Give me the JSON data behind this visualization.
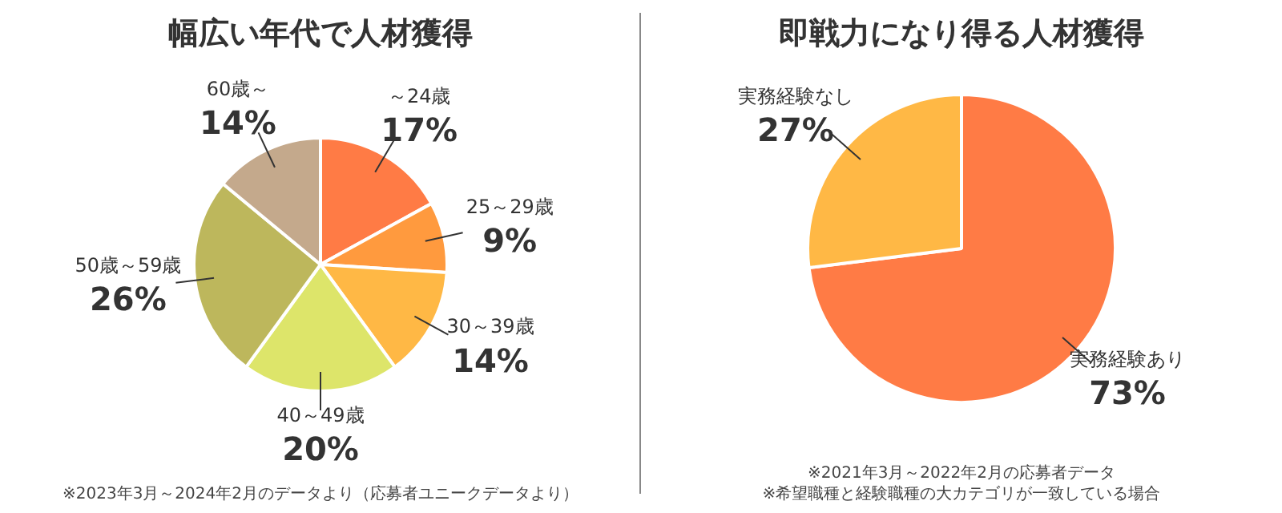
{
  "chart_data": [
    {
      "type": "pie",
      "title": "幅広い年代で人材獲得",
      "categories": [
        "～24歳",
        "25～29歳",
        "30～39歳",
        "40～49歳",
        "50歳～59歳",
        "60歳～"
      ],
      "values": [
        17,
        9,
        14,
        20,
        26,
        14
      ],
      "value_labels": [
        "17%",
        "9%",
        "14%",
        "20%",
        "26%",
        "14%"
      ],
      "colors": [
        "#ff7b45",
        "#ff9a3e",
        "#ffb845",
        "#dde56a",
        "#bdb75c",
        "#c4a98c"
      ],
      "annotations": [
        "※2023年3月～2024年2月のデータより（応募者ユニークデータより）"
      ]
    },
    {
      "type": "pie",
      "title": "即戦力になり得る人材獲得",
      "categories": [
        "実務経験あり",
        "実務経験なし"
      ],
      "values": [
        73,
        27
      ],
      "value_labels": [
        "73%",
        "27%"
      ],
      "colors": [
        "#ff7b45",
        "#ffb845"
      ],
      "annotations": [
        "※2021年3月～2022年2月の応募者データ",
        "※希望職種と経験職種の大カテゴリが一致している場合"
      ]
    }
  ]
}
